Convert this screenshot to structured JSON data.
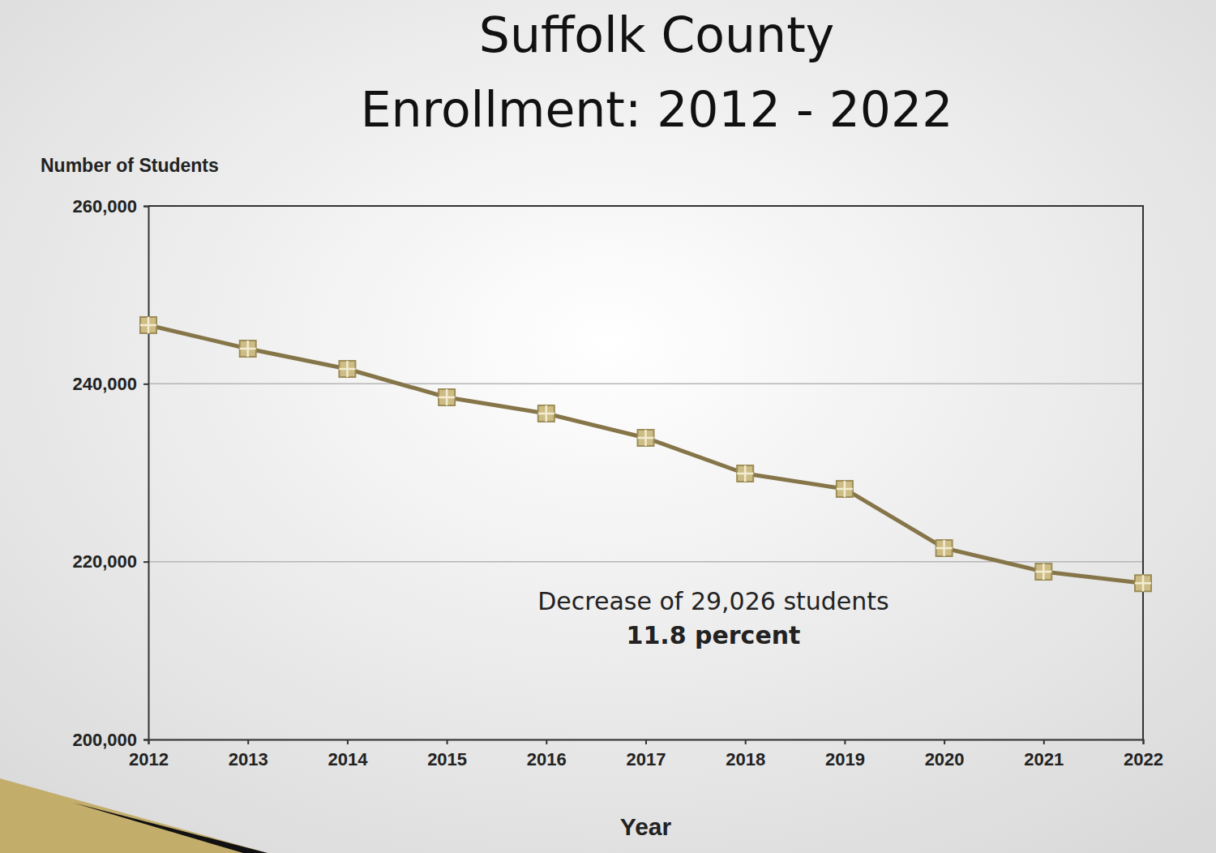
{
  "chart_data": {
    "type": "line",
    "title": "Suffolk County\nEnrollment: 2012 - 2022",
    "x_label": "Year",
    "y_label": "Number of Students",
    "annotations": [
      "Decrease of 29,026 students",
      "11.8 percent"
    ],
    "x": [
      2012,
      2013,
      2014,
      2015,
      2016,
      2017,
      2018,
      2019,
      2020,
      2021,
      2022
    ],
    "values": [
      246600,
      243950,
      241670,
      238480,
      236660,
      233920,
      229910,
      228180,
      221520,
      218870,
      217574
    ],
    "color": "#857548",
    "marker": "square",
    "xlim": [
      2012,
      2022
    ],
    "xticks": [
      2012,
      2013,
      2014,
      2015,
      2016,
      2017,
      2018,
      2019,
      2020,
      2021,
      2022
    ],
    "ylim": [
      200000,
      260000
    ],
    "yticks": [
      {
        "value": 200000,
        "label": "200,000"
      },
      {
        "value": 220000,
        "label": "220,000"
      },
      {
        "value": 240000,
        "label": "240,000"
      },
      {
        "value": 260000,
        "label": "260,000"
      }
    ],
    "grid": true
  }
}
